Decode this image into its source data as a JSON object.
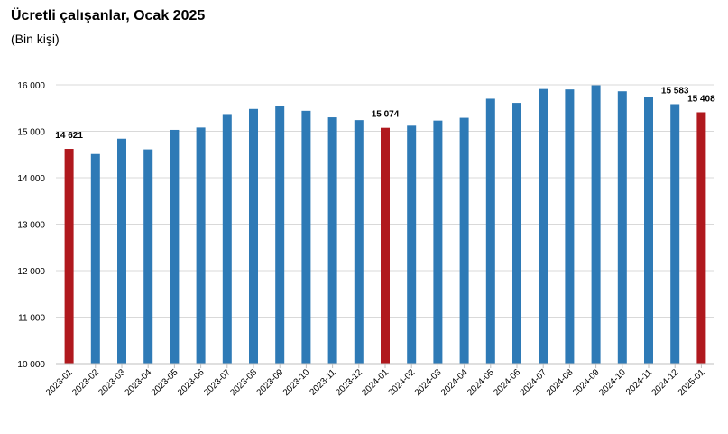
{
  "title": "Ücretli çalışanlar, Ocak 2025",
  "subtitle": "(Bin kişi)",
  "chart_data": {
    "type": "bar",
    "categories": [
      "2023-01",
      "2023-02",
      "2023-03",
      "2023-04",
      "2023-05",
      "2023-06",
      "2023-07",
      "2023-08",
      "2023-09",
      "2023-10",
      "2023-11",
      "2023-12",
      "2024-01",
      "2024-02",
      "2024-03",
      "2024-04",
      "2024-05",
      "2024-06",
      "2024-07",
      "2024-08",
      "2024-09",
      "2024-10",
      "2024-11",
      "2024-12",
      "2025-01"
    ],
    "values": [
      14621,
      14510,
      14840,
      14610,
      15030,
      15080,
      15370,
      15480,
      15550,
      15440,
      15300,
      15240,
      15074,
      15120,
      15230,
      15290,
      15700,
      15610,
      15910,
      15900,
      15990,
      15860,
      15740,
      15583,
      15408
    ],
    "highlighted": [
      "2023-01",
      "2024-01",
      "2025-01"
    ],
    "data_labels": [
      {
        "category": "2023-01",
        "text": "14 621"
      },
      {
        "category": "2024-01",
        "text": "15 074"
      },
      {
        "category": "2024-12",
        "text": "15 583"
      },
      {
        "category": "2025-01",
        "text": "15 408"
      }
    ],
    "yticks": [
      {
        "value": 10000,
        "label": "10 000"
      },
      {
        "value": 11000,
        "label": "11 000"
      },
      {
        "value": 12000,
        "label": "12 000"
      },
      {
        "value": 13000,
        "label": "13 000"
      },
      {
        "value": 14000,
        "label": "14 000"
      },
      {
        "value": 15000,
        "label": "15 000"
      },
      {
        "value": 16000,
        "label": "16 000"
      }
    ],
    "ylim": [
      10000,
      16000
    ],
    "grid": true,
    "legend": "none",
    "colors": {
      "bar": "#2e7ab6",
      "highlight": "#b0191e",
      "grid": "#d9d9d9",
      "axis": "#bfbfbf"
    }
  }
}
